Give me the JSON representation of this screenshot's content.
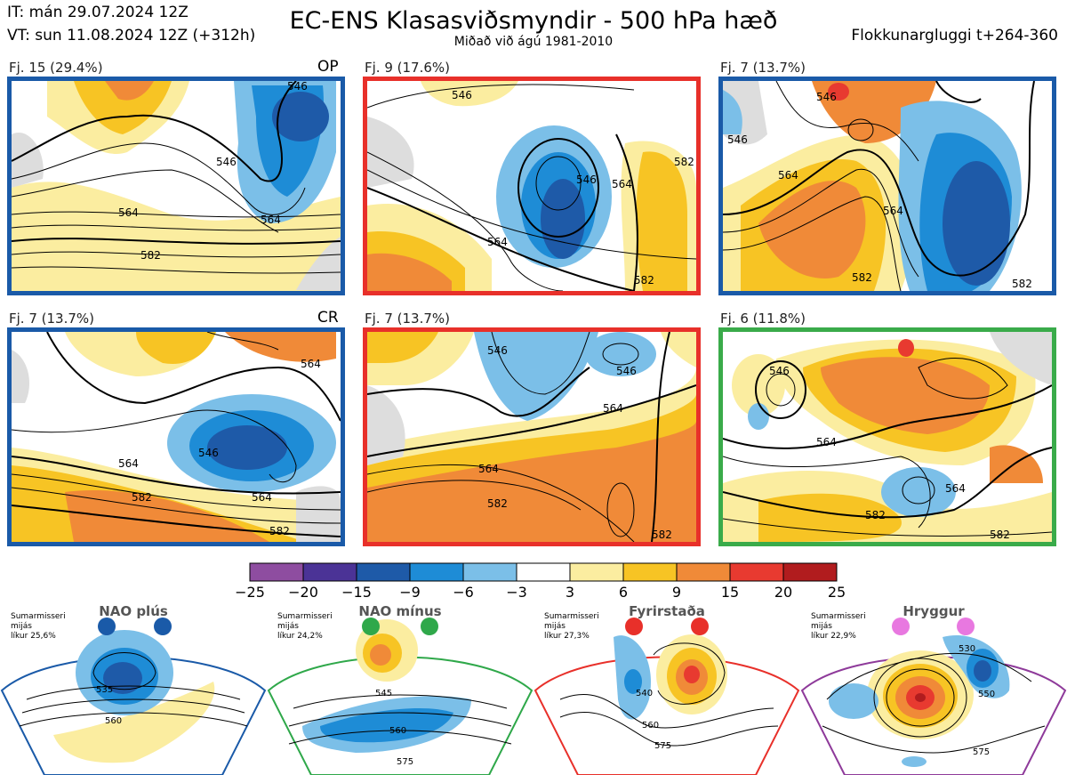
{
  "header": {
    "initial_time": "IT: mán 29.07.2024 12Z",
    "valid_time": "VT: sun 11.08.2024 12Z  (+312h)",
    "title": "EC-ENS Klasasviðsmyndir - 500 hPa hæð",
    "subtitle": "Miðað við ágú 1981-2010",
    "cluster_window": "Flokkunargluggi t+264-360"
  },
  "panels": [
    {
      "label": "Fj. 15 (29.4%)",
      "tag": "OP",
      "border_color": "#1a5aa8",
      "contours": [
        "546",
        "546",
        "564",
        "564",
        "582"
      ]
    },
    {
      "label": "Fj. 9 (17.6%)",
      "tag": "",
      "border_color": "#e8302a",
      "contours": [
        "546",
        "546",
        "564",
        "564",
        "582",
        "582"
      ]
    },
    {
      "label": "Fj. 7 (13.7%)",
      "tag": "",
      "border_color": "#1a5aa8",
      "contours": [
        "546",
        "546",
        "564",
        "564",
        "582",
        "582"
      ]
    },
    {
      "label": "Fj. 7 (13.7%)",
      "tag": "CR",
      "border_color": "#1a5aa8",
      "contours": [
        "546",
        "564",
        "564",
        "564",
        "582",
        "582"
      ]
    },
    {
      "label": "Fj. 7 (13.7%)",
      "tag": "",
      "border_color": "#e8302a",
      "contours": [
        "546",
        "546",
        "564",
        "564",
        "582",
        "582"
      ]
    },
    {
      "label": "Fj. 6 (11.8%)",
      "tag": "",
      "border_color": "#3aab4a",
      "contours": [
        "546",
        "564",
        "564",
        "582",
        "582"
      ]
    }
  ],
  "colorbar": {
    "colors": [
      "#8e4da0",
      "#4b3396",
      "#1e5aa8",
      "#1e8cd6",
      "#7bbfe8",
      "#ffffff",
      "#fbeda0",
      "#f7c424",
      "#f08a38",
      "#e83a30",
      "#b11c1e"
    ],
    "ticks": [
      "−25",
      "−20",
      "−15",
      "−9",
      "−6",
      "−3",
      "3",
      "6",
      "9",
      "15",
      "20",
      "25"
    ]
  },
  "regimes": [
    {
      "title": "NAO plús",
      "season": "Sumarmisseri",
      "mean": "mijás",
      "probability": "líkur 25,6%",
      "color": "#1a5aa8",
      "contours": [
        "535",
        "560"
      ]
    },
    {
      "title": "NAO mínus",
      "season": "Sumarmisseri",
      "mean": "mijás",
      "probability": "líkur 24,2%",
      "color": "#2fa84a",
      "contours": [
        "545",
        "560",
        "575"
      ]
    },
    {
      "title": "Fyrirstaða",
      "season": "Sumarmisseri",
      "mean": "mijás",
      "probability": "líkur 27,3%",
      "color": "#e8302a",
      "contours": [
        "540",
        "560",
        "575"
      ]
    },
    {
      "title": "Hryggur",
      "season": "Sumarmisseri",
      "mean": "mijás",
      "probability": "líkur 22,9%",
      "color": "#8e3a9a",
      "contours": [
        "530",
        "550",
        "575"
      ]
    }
  ]
}
